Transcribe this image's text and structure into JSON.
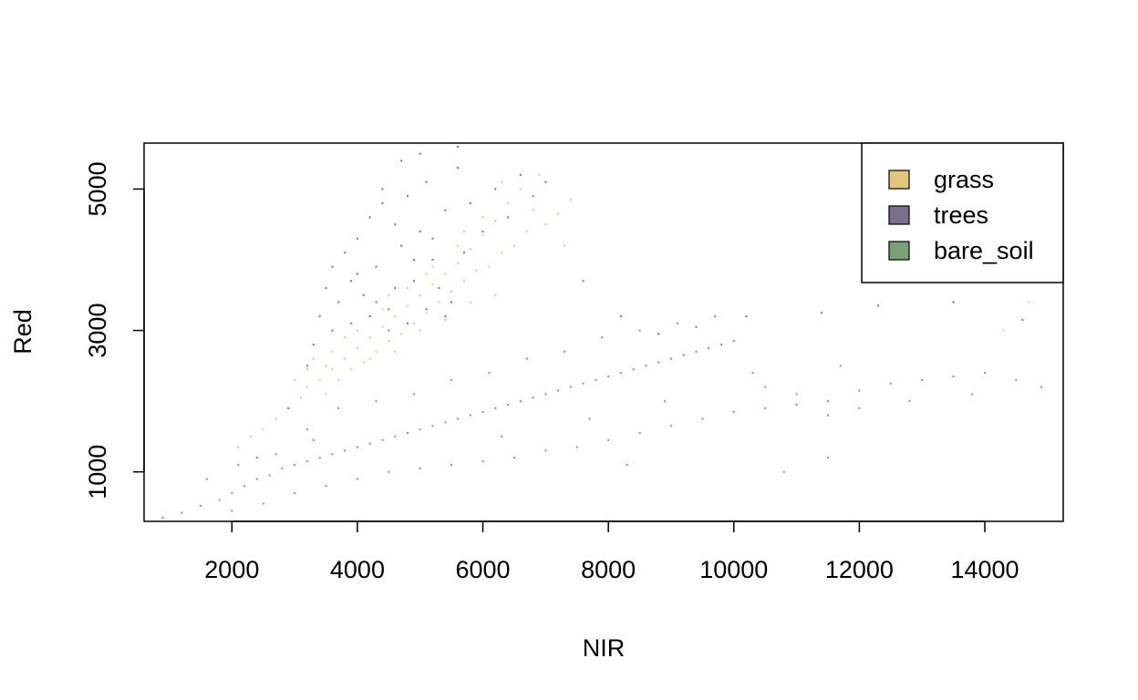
{
  "chart_data": {
    "type": "scatter",
    "title": "",
    "xlabel": "NIR",
    "ylabel": "Red",
    "xlim": [
      600,
      15250
    ],
    "ylim": [
      300,
      5650
    ],
    "x_ticks": [
      2000,
      4000,
      6000,
      8000,
      10000,
      12000,
      14000
    ],
    "y_ticks": [
      1000,
      3000,
      5000
    ],
    "grid": false,
    "legend_position": "top-right",
    "series": [
      {
        "name": "grass",
        "color": "#E1C67F",
        "points": [
          [
            2700,
            1750
          ],
          [
            2900,
            1900
          ],
          [
            3100,
            2050
          ],
          [
            3200,
            2200
          ],
          [
            3400,
            2300
          ],
          [
            3500,
            2100
          ],
          [
            3600,
            2450
          ],
          [
            3700,
            2300
          ],
          [
            3800,
            2600
          ],
          [
            3900,
            2450
          ],
          [
            4000,
            2750
          ],
          [
            4100,
            2550
          ],
          [
            4200,
            2900
          ],
          [
            4300,
            2700
          ],
          [
            4400,
            3050
          ],
          [
            4500,
            2850
          ],
          [
            4600,
            3200
          ],
          [
            4700,
            2950
          ],
          [
            4800,
            3350
          ],
          [
            4900,
            3100
          ],
          [
            5000,
            3500
          ],
          [
            5100,
            3250
          ],
          [
            5200,
            3650
          ],
          [
            5300,
            3400
          ],
          [
            5400,
            3800
          ],
          [
            5500,
            3550
          ],
          [
            5600,
            3950
          ],
          [
            5700,
            3700
          ],
          [
            5800,
            4150
          ],
          [
            5900,
            3850
          ],
          [
            6000,
            4350
          ],
          [
            6100,
            3900
          ],
          [
            6200,
            4550
          ],
          [
            6300,
            4100
          ],
          [
            6400,
            4800
          ],
          [
            6500,
            4200
          ],
          [
            6600,
            5000
          ],
          [
            6700,
            4400
          ],
          [
            6800,
            4700
          ],
          [
            7000,
            4500
          ],
          [
            7200,
            4650
          ],
          [
            7400,
            4850
          ],
          [
            3300,
            2600
          ],
          [
            3600,
            2700
          ],
          [
            4000,
            3000
          ],
          [
            4400,
            3300
          ],
          [
            4800,
            3600
          ],
          [
            5200,
            3900
          ],
          [
            5600,
            4200
          ],
          [
            6000,
            4600
          ],
          [
            3000,
            2300
          ],
          [
            3500,
            2500
          ],
          [
            4200,
            2600
          ],
          [
            4600,
            2700
          ],
          [
            5000,
            3000
          ],
          [
            5400,
            3150
          ],
          [
            5800,
            3400
          ],
          [
            6200,
            3500
          ],
          [
            2500,
            1600
          ],
          [
            2300,
            1500
          ],
          [
            2100,
            1350
          ],
          [
            3200,
            2450
          ],
          [
            3800,
            2900
          ],
          [
            4500,
            3500
          ],
          [
            5100,
            3800
          ],
          [
            5700,
            4400
          ],
          [
            6300,
            5100
          ],
          [
            6900,
            5200
          ],
          [
            7300,
            4200
          ],
          [
            14700,
            3400
          ],
          [
            14300,
            3000
          ]
        ]
      },
      {
        "name": "trees",
        "color": "#7A6F8C",
        "points": [
          [
            3400,
            3200
          ],
          [
            3500,
            3600
          ],
          [
            3600,
            3900
          ],
          [
            3700,
            3400
          ],
          [
            3800,
            4100
          ],
          [
            3900,
            3700
          ],
          [
            4000,
            4300
          ],
          [
            4100,
            3500
          ],
          [
            4200,
            4600
          ],
          [
            4300,
            3900
          ],
          [
            4400,
            4800
          ],
          [
            4500,
            3300
          ],
          [
            4600,
            4500
          ],
          [
            4700,
            4200
          ],
          [
            4800,
            4900
          ],
          [
            4900,
            3700
          ],
          [
            5000,
            4400
          ],
          [
            5100,
            5100
          ],
          [
            5200,
            4000
          ],
          [
            5300,
            3600
          ],
          [
            5400,
            4700
          ],
          [
            5500,
            3400
          ],
          [
            5600,
            5300
          ],
          [
            5700,
            4100
          ],
          [
            5800,
            4800
          ],
          [
            6000,
            4400
          ],
          [
            6200,
            5000
          ],
          [
            6400,
            4600
          ],
          [
            6600,
            5200
          ],
          [
            6800,
            4900
          ],
          [
            7000,
            5100
          ],
          [
            3300,
            2800
          ],
          [
            3600,
            3000
          ],
          [
            3900,
            3100
          ],
          [
            4200,
            3200
          ],
          [
            4500,
            3000
          ],
          [
            4800,
            3100
          ],
          [
            5100,
            3300
          ],
          [
            5400,
            3200
          ],
          [
            4000,
            3800
          ],
          [
            4300,
            3400
          ],
          [
            4600,
            3600
          ],
          [
            4900,
            4000
          ],
          [
            5200,
            4300
          ],
          [
            4400,
            5000
          ],
          [
            4700,
            5400
          ],
          [
            5000,
            5500
          ],
          [
            5600,
            5600
          ],
          [
            3200,
            2500
          ],
          [
            2900,
            1900
          ],
          [
            2400,
            1200
          ],
          [
            7600,
            3700
          ],
          [
            8200,
            3200
          ],
          [
            8800,
            2950
          ],
          [
            9400,
            3050
          ],
          [
            10200,
            3200
          ],
          [
            11400,
            3250
          ],
          [
            12300,
            3350
          ],
          [
            13500,
            3400
          ],
          [
            14600,
            3150
          ]
        ]
      },
      {
        "name": "bare_soil",
        "color": "#7BA077",
        "points": [
          [
            900,
            350
          ],
          [
            1200,
            420
          ],
          [
            1500,
            520
          ],
          [
            1800,
            600
          ],
          [
            2000,
            700
          ],
          [
            2200,
            800
          ],
          [
            2400,
            900
          ],
          [
            2600,
            950
          ],
          [
            2800,
            1050
          ],
          [
            3000,
            1100
          ],
          [
            3200,
            1150
          ],
          [
            3400,
            1200
          ],
          [
            3600,
            1250
          ],
          [
            3800,
            1300
          ],
          [
            4000,
            1350
          ],
          [
            4200,
            1400
          ],
          [
            4400,
            1450
          ],
          [
            4600,
            1500
          ],
          [
            4800,
            1550
          ],
          [
            5000,
            1600
          ],
          [
            5200,
            1650
          ],
          [
            5400,
            1700
          ],
          [
            5600,
            1750
          ],
          [
            5800,
            1800
          ],
          [
            6000,
            1850
          ],
          [
            6200,
            1900
          ],
          [
            6400,
            1950
          ],
          [
            6600,
            2000
          ],
          [
            6800,
            2050
          ],
          [
            7000,
            2100
          ],
          [
            7200,
            2150
          ],
          [
            7400,
            2200
          ],
          [
            7600,
            2250
          ],
          [
            7800,
            2300
          ],
          [
            8000,
            2350
          ],
          [
            8200,
            2400
          ],
          [
            8400,
            2450
          ],
          [
            8600,
            2500
          ],
          [
            8800,
            2550
          ],
          [
            9000,
            2600
          ],
          [
            9200,
            2650
          ],
          [
            9400,
            2700
          ],
          [
            9600,
            2750
          ],
          [
            9800,
            2800
          ],
          [
            10000,
            2850
          ],
          [
            10500,
            2200
          ],
          [
            11000,
            2100
          ],
          [
            11500,
            2000
          ],
          [
            12000,
            2150
          ],
          [
            12500,
            2250
          ],
          [
            13000,
            2300
          ],
          [
            13500,
            2350
          ],
          [
            14000,
            2400
          ],
          [
            14500,
            2300
          ],
          [
            2000,
            450
          ],
          [
            2500,
            550
          ],
          [
            3000,
            700
          ],
          [
            3500,
            800
          ],
          [
            4000,
            900
          ],
          [
            4500,
            1000
          ],
          [
            5000,
            1050
          ],
          [
            5500,
            1100
          ],
          [
            6000,
            1150
          ],
          [
            6500,
            1200
          ],
          [
            7000,
            1300
          ],
          [
            7500,
            1350
          ],
          [
            8000,
            1450
          ],
          [
            8500,
            1550
          ],
          [
            9000,
            1650
          ],
          [
            9500,
            1750
          ],
          [
            10000,
            1850
          ],
          [
            10500,
            1900
          ],
          [
            11000,
            1950
          ],
          [
            11500,
            1800
          ],
          [
            12000,
            1900
          ],
          [
            3200,
            1600
          ],
          [
            3700,
            1900
          ],
          [
            4300,
            2000
          ],
          [
            4900,
            2100
          ],
          [
            5500,
            2300
          ],
          [
            6100,
            2400
          ],
          [
            6700,
            2600
          ],
          [
            7300,
            2700
          ],
          [
            7900,
            2900
          ],
          [
            8500,
            3000
          ],
          [
            9100,
            3100
          ],
          [
            9700,
            3200
          ],
          [
            1600,
            900
          ],
          [
            2100,
            1100
          ],
          [
            2700,
            1250
          ],
          [
            3300,
            1450
          ],
          [
            6300,
            1500
          ],
          [
            7700,
            1750
          ],
          [
            8900,
            2000
          ],
          [
            10300,
            2400
          ],
          [
            11700,
            2500
          ],
          [
            12800,
            2000
          ],
          [
            13800,
            2100
          ],
          [
            14900,
            2200
          ],
          [
            10800,
            1000
          ],
          [
            11500,
            1200
          ],
          [
            8300,
            1100
          ]
        ]
      }
    ]
  }
}
